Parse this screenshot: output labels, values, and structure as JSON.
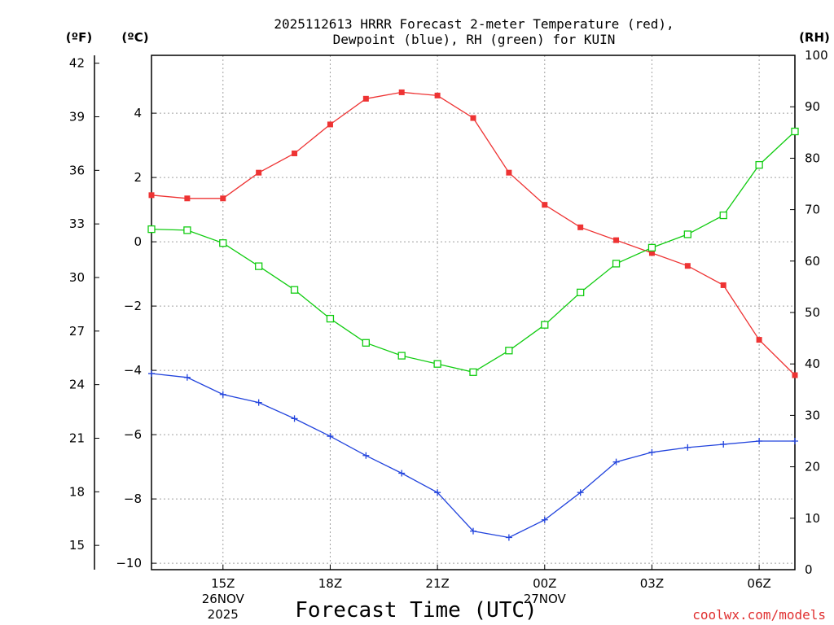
{
  "title_line1": "2025112613 HRRR Forecast 2-meter Temperature (red),",
  "title_line2": "Dewpoint (blue), RH (green) for KUIN",
  "units": {
    "left_f": "(ºF)",
    "left_c": "(ºC)",
    "right_rh": "(RH)"
  },
  "xlabel": "Forecast Time (UTC)",
  "credit": "coolwx.com/models",
  "x_ticks": [
    {
      "hour": 15,
      "label": "15Z",
      "sub1": "26NOV",
      "sub2": "2025"
    },
    {
      "hour": 18,
      "label": "18Z",
      "sub1": "",
      "sub2": ""
    },
    {
      "hour": 21,
      "label": "21Z",
      "sub1": "",
      "sub2": ""
    },
    {
      "hour": 24,
      "label": "00Z",
      "sub1": "27NOV",
      "sub2": ""
    },
    {
      "hour": 27,
      "label": "03Z",
      "sub1": "",
      "sub2": ""
    },
    {
      "hour": 30,
      "label": "06Z",
      "sub1": "",
      "sub2": ""
    }
  ],
  "chart_data": {
    "type": "line",
    "x_unit": "hours since 2025-11-26 00Z",
    "x": [
      13,
      14,
      15,
      16,
      17,
      18,
      19,
      20,
      21,
      22,
      23,
      24,
      25,
      26,
      27,
      28,
      29,
      30,
      31
    ],
    "xlim": [
      13,
      31
    ],
    "c_ylim": [
      -10.2,
      5.8
    ],
    "c_ticks": [
      4,
      2,
      0,
      -2,
      -4,
      -6,
      -8,
      -10
    ],
    "c_tick_labels": [
      "4",
      "2",
      "0",
      "−2",
      "−4",
      "−6",
      "−8",
      "−10"
    ],
    "f_ticks": [
      42,
      39,
      36,
      33,
      30,
      27,
      24,
      21,
      18,
      15
    ],
    "f_tick_labels": [
      "42",
      "39",
      "36",
      "33",
      "30",
      "27",
      "24",
      "21",
      "18",
      "15"
    ],
    "rh_ylim": [
      0,
      100
    ],
    "rh_ticks": [
      100,
      90,
      80,
      70,
      60,
      50,
      40,
      30,
      20,
      10,
      0
    ],
    "rh_tick_labels": [
      "100",
      "90",
      "80",
      "70",
      "60",
      "50",
      "40",
      "30",
      "20",
      "10",
      "0"
    ],
    "series": [
      {
        "name": "2-meter Temperature",
        "axis": "C",
        "color": "#ee3333",
        "marker": "filled-square",
        "values": [
          1.45,
          1.35,
          1.35,
          2.15,
          2.75,
          3.65,
          4.45,
          4.65,
          4.55,
          3.85,
          2.15,
          1.15,
          0.45,
          0.05,
          -0.35,
          -0.75,
          -1.35,
          -3.05,
          -4.15
        ]
      },
      {
        "name": "Dewpoint",
        "axis": "C",
        "color": "#2244dd",
        "marker": "plus",
        "values": [
          -4.1,
          -4.22,
          -4.75,
          -5.0,
          -5.5,
          -6.05,
          -6.65,
          -7.2,
          -7.8,
          -9.0,
          -9.2,
          -8.65,
          -7.8,
          -6.85,
          -6.55,
          -6.4,
          -6.3,
          -6.2,
          -6.2
        ]
      },
      {
        "name": "Relative Humidity",
        "axis": "RH",
        "color": "#11cc11",
        "marker": "open-square",
        "values": [
          66.2,
          66.0,
          63.5,
          59.0,
          54.4,
          48.8,
          44.1,
          41.6,
          40.0,
          38.4,
          42.6,
          47.6,
          53.9,
          59.5,
          62.6,
          65.2,
          68.9,
          78.7,
          85.2
        ]
      }
    ]
  }
}
